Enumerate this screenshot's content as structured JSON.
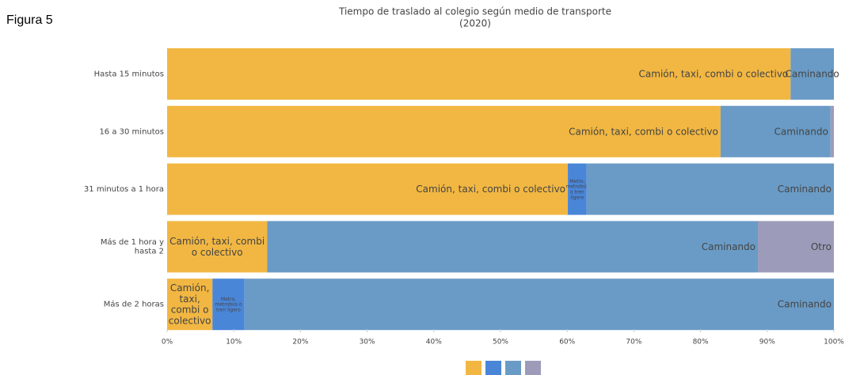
{
  "figure_label": "Figura 5",
  "chart_data": {
    "type": "stacked_barh",
    "title": "Tiempo de traslado al colegio según medio de transporte",
    "subtitle": "(2020)",
    "categories": [
      "Hasta 15 minutos",
      "16 a 30 minutos",
      "31 minutos a 1 hora",
      "Más de 1 hora y hasta 2",
      "Más de 2 horas"
    ],
    "series": [
      {
        "name": "Camión, taxi, combi o colectivo",
        "color": "#f2b742",
        "values": [
          93.5,
          83.0,
          60.1,
          15.0,
          6.8
        ]
      },
      {
        "name": "Metro, metrobús o tren ligero",
        "color": "#4a86d8",
        "values": [
          0,
          0,
          2.8,
          0,
          4.8
        ]
      },
      {
        "name": "Caminando",
        "color": "#6a9bc6",
        "values": [
          6.5,
          16.5,
          37.1,
          73.6,
          88.4
        ]
      },
      {
        "name": "Otro",
        "color": "#9c9cba",
        "values": [
          0,
          0.5,
          0,
          11.4,
          0
        ]
      }
    ],
    "xlim": [
      0,
      100
    ],
    "xticks": [
      {
        "value": 0,
        "label": "0%"
      },
      {
        "value": 10,
        "label": "10%"
      },
      {
        "value": 20,
        "label": "20%"
      },
      {
        "value": 30,
        "label": "30%"
      },
      {
        "value": 40,
        "label": "40%"
      },
      {
        "value": 50,
        "label": "50%"
      },
      {
        "value": 60,
        "label": "60%"
      },
      {
        "value": 70,
        "label": "70%"
      },
      {
        "value": 80,
        "label": "80%"
      },
      {
        "value": 90,
        "label": "90%"
      },
      {
        "value": 100,
        "label": "100%"
      }
    ]
  }
}
